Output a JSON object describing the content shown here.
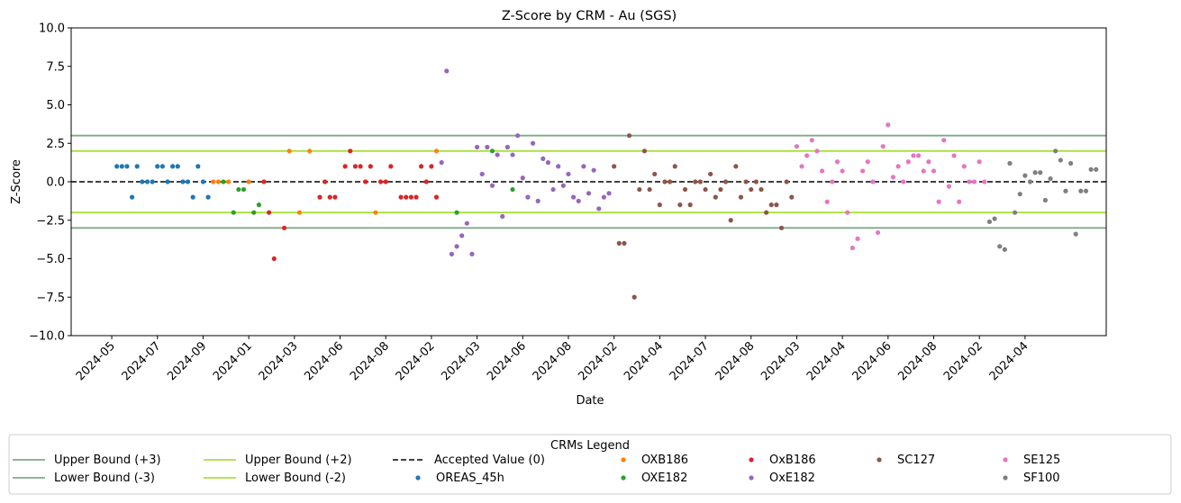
{
  "chart_data": {
    "type": "scatter",
    "title": "Z-Score by CRM - Au (SGS)",
    "xlabel": "Date",
    "ylabel": "Z-Score",
    "ylim": [
      -10,
      10
    ],
    "yticks": [
      "10.0",
      "7.5",
      "5.0",
      "2.5",
      "0.0",
      "−2.5",
      "−5.0",
      "−7.5",
      "−10.0"
    ],
    "ytick_values": [
      10,
      7.5,
      5,
      2.5,
      0,
      -2.5,
      -5,
      -7.5,
      -10
    ],
    "x_tick_labels": [
      "2024-05",
      "2024-07",
      "2024-09",
      "2024-01",
      "2024-03",
      "2024-06",
      "2024-08",
      "2024-02",
      "2024-03",
      "2024-06",
      "2024-08",
      "2024-02",
      "2024-04",
      "2024-07",
      "2024-08",
      "2024-03",
      "2024-04",
      "2024-06",
      "2024-08",
      "2024-02",
      "2024-04"
    ],
    "x_tick_index": [
      0,
      9,
      18,
      27,
      36,
      45,
      54,
      63,
      72,
      81,
      90,
      99,
      108,
      117,
      126,
      135,
      144,
      153,
      162,
      171,
      180
    ],
    "x_index_range": [
      -8,
      196
    ],
    "grid": false,
    "reference_lines": [
      {
        "name": "Upper Bound (+3)",
        "y": 3,
        "color": "#7faa88",
        "style": "solid"
      },
      {
        "name": "Lower Bound (-3)",
        "y": -3,
        "color": "#7faa88",
        "style": "solid"
      },
      {
        "name": "Upper Bound (+2)",
        "y": 2,
        "color": "#a8e03b",
        "style": "solid"
      },
      {
        "name": "Lower Bound (-2)",
        "y": -2,
        "color": "#a8e03b",
        "style": "solid"
      },
      {
        "name": "Accepted Value (0)",
        "y": 0,
        "color": "#000000",
        "style": "dashed"
      }
    ],
    "legend": {
      "title": "CRMs Legend",
      "position": "bottom-center"
    },
    "series": [
      {
        "name": "OREAS_45h",
        "color": "#1f77b4",
        "points": [
          [
            1,
            1
          ],
          [
            2,
            1
          ],
          [
            3,
            1
          ],
          [
            4,
            -1
          ],
          [
            5,
            1
          ],
          [
            6,
            0
          ],
          [
            7,
            0
          ],
          [
            8,
            0
          ],
          [
            9,
            1
          ],
          [
            10,
            1
          ],
          [
            11,
            0
          ],
          [
            12,
            1
          ],
          [
            13,
            1
          ],
          [
            14,
            0
          ],
          [
            15,
            0
          ],
          [
            16,
            -1
          ],
          [
            17,
            1
          ],
          [
            18,
            0
          ],
          [
            19,
            -1
          ]
        ]
      },
      {
        "name": "OXB186",
        "color": "#ff7f0e",
        "points": [
          [
            20,
            0
          ],
          [
            21,
            0
          ],
          [
            23,
            0
          ],
          [
            27,
            0
          ],
          [
            35,
            2
          ],
          [
            37,
            -2
          ],
          [
            39,
            2
          ],
          [
            52,
            -2
          ],
          [
            64,
            2
          ]
        ]
      },
      {
        "name": "OXE182",
        "color": "#2ca02c",
        "points": [
          [
            22,
            0
          ],
          [
            24,
            -2
          ],
          [
            25,
            -0.5
          ],
          [
            26,
            -0.5
          ],
          [
            28,
            -2
          ],
          [
            29,
            -1.5
          ],
          [
            68,
            -2
          ],
          [
            75,
            2
          ],
          [
            79,
            -0.5
          ]
        ]
      },
      {
        "name": "OxB186",
        "color": "#d62728",
        "points": [
          [
            30,
            0
          ],
          [
            31,
            -2
          ],
          [
            32,
            -5
          ],
          [
            34,
            -3
          ],
          [
            41,
            -1
          ],
          [
            42,
            0
          ],
          [
            43,
            -1
          ],
          [
            44,
            -1
          ],
          [
            46,
            1
          ],
          [
            47,
            2
          ],
          [
            48,
            1
          ],
          [
            49,
            1
          ],
          [
            50,
            0
          ],
          [
            51,
            1
          ],
          [
            53,
            0
          ],
          [
            54,
            0
          ],
          [
            55,
            1
          ],
          [
            57,
            -1
          ],
          [
            58,
            -1
          ],
          [
            59,
            -1
          ],
          [
            60,
            -1
          ],
          [
            61,
            1
          ],
          [
            62,
            0
          ],
          [
            63,
            1
          ],
          [
            64,
            -1
          ]
        ]
      },
      {
        "name": "OxE182",
        "color": "#9467bd",
        "points": [
          [
            65,
            1.25
          ],
          [
            66,
            7.2
          ],
          [
            67,
            -4.7
          ],
          [
            68,
            -4.2
          ],
          [
            69,
            -3.5
          ],
          [
            70,
            -2.7
          ],
          [
            71,
            -4.7
          ],
          [
            72,
            2.25
          ],
          [
            73,
            0.5
          ],
          [
            74,
            2.25
          ],
          [
            75,
            -0.25
          ],
          [
            76,
            1.75
          ],
          [
            77,
            -2.25
          ],
          [
            78,
            2.25
          ],
          [
            79,
            1.75
          ],
          [
            80,
            3
          ],
          [
            81,
            0.25
          ],
          [
            82,
            -1
          ],
          [
            83,
            2.5
          ],
          [
            84,
            -1.25
          ],
          [
            85,
            1.5
          ],
          [
            86,
            1.25
          ],
          [
            87,
            -0.5
          ],
          [
            88,
            1
          ],
          [
            89,
            -0.25
          ],
          [
            90,
            0.5
          ],
          [
            91,
            -1
          ],
          [
            92,
            -1.25
          ],
          [
            93,
            1
          ],
          [
            94,
            -0.75
          ],
          [
            95,
            0.75
          ],
          [
            96,
            -1.75
          ],
          [
            97,
            -1
          ],
          [
            98,
            -0.75
          ]
        ]
      },
      {
        "name": "SC127",
        "color": "#8c564b",
        "points": [
          [
            99,
            1
          ],
          [
            100,
            -4
          ],
          [
            101,
            -4
          ],
          [
            102,
            3
          ],
          [
            103,
            -7.5
          ],
          [
            104,
            -0.5
          ],
          [
            105,
            2
          ],
          [
            106,
            -0.5
          ],
          [
            107,
            0.5
          ],
          [
            108,
            -1.5
          ],
          [
            109,
            0
          ],
          [
            110,
            0
          ],
          [
            111,
            1
          ],
          [
            112,
            -1.5
          ],
          [
            113,
            -0.5
          ],
          [
            114,
            -1.5
          ],
          [
            115,
            0
          ],
          [
            116,
            0
          ],
          [
            117,
            -0.5
          ],
          [
            118,
            0.5
          ],
          [
            119,
            -1
          ],
          [
            120,
            -0.5
          ],
          [
            121,
            0
          ],
          [
            122,
            -2.5
          ],
          [
            123,
            1
          ],
          [
            124,
            -1
          ],
          [
            125,
            0
          ],
          [
            126,
            -0.5
          ],
          [
            127,
            0
          ],
          [
            128,
            -0.5
          ],
          [
            129,
            -2
          ],
          [
            130,
            -1.5
          ],
          [
            131,
            -1.5
          ],
          [
            132,
            -3
          ],
          [
            133,
            0
          ],
          [
            134,
            -1
          ]
        ]
      },
      {
        "name": "SE125",
        "color": "#e377c2",
        "points": [
          [
            135,
            2.3
          ],
          [
            136,
            1
          ],
          [
            137,
            1.7
          ],
          [
            138,
            2.7
          ],
          [
            139,
            2
          ],
          [
            140,
            0.7
          ],
          [
            141,
            -1.3
          ],
          [
            142,
            0
          ],
          [
            143,
            1.3
          ],
          [
            144,
            0.7
          ],
          [
            145,
            -2
          ],
          [
            146,
            -4.3
          ],
          [
            147,
            -3.7
          ],
          [
            148,
            0.7
          ],
          [
            149,
            1.3
          ],
          [
            150,
            0
          ],
          [
            151,
            -3.3
          ],
          [
            152,
            2.3
          ],
          [
            153,
            3.7
          ],
          [
            154,
            0.3
          ],
          [
            155,
            1
          ],
          [
            156,
            0
          ],
          [
            157,
            1.3
          ],
          [
            158,
            1.7
          ],
          [
            159,
            1.7
          ],
          [
            160,
            0.7
          ],
          [
            161,
            1.3
          ],
          [
            162,
            0.7
          ],
          [
            163,
            -1.3
          ],
          [
            164,
            2.7
          ],
          [
            165,
            -0.3
          ],
          [
            166,
            1.7
          ],
          [
            167,
            -1.3
          ],
          [
            168,
            1
          ],
          [
            169,
            0
          ],
          [
            170,
            0
          ],
          [
            171,
            1.3
          ],
          [
            172,
            0
          ]
        ]
      },
      {
        "name": "SF100",
        "color": "#7f7f7f",
        "points": [
          [
            173,
            -2.6
          ],
          [
            174,
            -2.4
          ],
          [
            175,
            -4.2
          ],
          [
            176,
            -4.4
          ],
          [
            177,
            1.2
          ],
          [
            178,
            -2
          ],
          [
            179,
            -0.8
          ],
          [
            180,
            0.4
          ],
          [
            181,
            0
          ],
          [
            182,
            0.6
          ],
          [
            183,
            0.6
          ],
          [
            184,
            -1.2
          ],
          [
            185,
            0.2
          ],
          [
            186,
            2
          ],
          [
            187,
            1.4
          ],
          [
            188,
            -0.6
          ],
          [
            189,
            1.2
          ],
          [
            190,
            -3.4
          ],
          [
            191,
            -0.6
          ],
          [
            192,
            -0.6
          ],
          [
            193,
            0.8
          ],
          [
            194,
            0.8
          ]
        ]
      }
    ]
  }
}
